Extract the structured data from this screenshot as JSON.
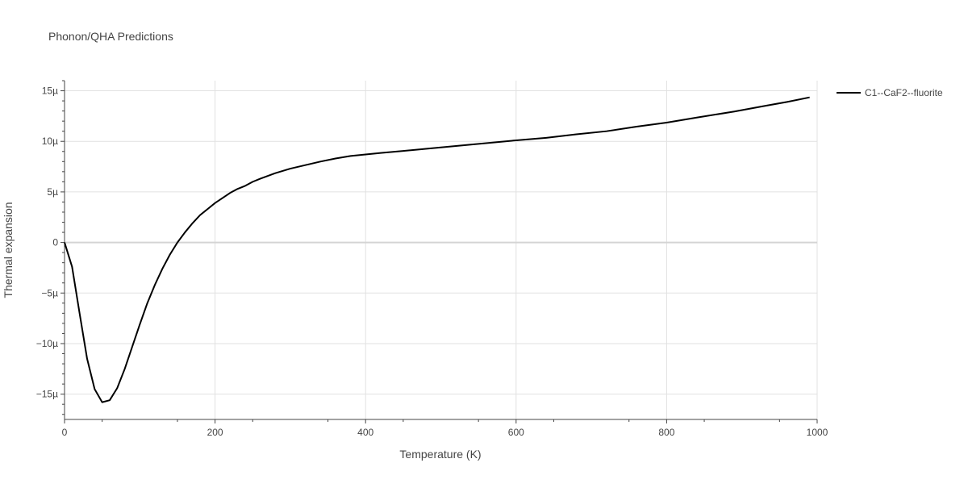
{
  "chart_data": {
    "type": "line",
    "title": "Phonon/QHA Predictions",
    "xlabel": "Temperature (K)",
    "ylabel": "Thermal expansion",
    "xlim": [
      0,
      1000
    ],
    "ylim": [
      -1.75e-05,
      1.6e-05
    ],
    "x_ticks": [
      {
        "value": 0,
        "label": "0"
      },
      {
        "value": 200,
        "label": "200"
      },
      {
        "value": 400,
        "label": "400"
      },
      {
        "value": 600,
        "label": "600"
      },
      {
        "value": 800,
        "label": "800"
      },
      {
        "value": 1000,
        "label": "1000"
      }
    ],
    "y_ticks": [
      {
        "value": -1.5e-05,
        "label": "−15µ"
      },
      {
        "value": -1e-05,
        "label": "−10µ"
      },
      {
        "value": -5e-06,
        "label": "−5µ"
      },
      {
        "value": 0,
        "label": "0"
      },
      {
        "value": 5e-06,
        "label": "5µ"
      },
      {
        "value": 1e-05,
        "label": "10µ"
      },
      {
        "value": 1.5e-05,
        "label": "15µ"
      }
    ],
    "grid": true,
    "legend_position": "top-right",
    "series": [
      {
        "name": "C1--CaF2--fluorite",
        "color": "#000000",
        "x": [
          0,
          10,
          20,
          30,
          40,
          50,
          60,
          70,
          80,
          90,
          100,
          110,
          120,
          130,
          140,
          150,
          160,
          170,
          180,
          190,
          200,
          210,
          220,
          230,
          240,
          250,
          260,
          280,
          300,
          320,
          340,
          360,
          380,
          400,
          420,
          450,
          500,
          550,
          600,
          640,
          680,
          720,
          760,
          800,
          840,
          890,
          930,
          960,
          990
        ],
        "y": [
          0,
          -2.4e-06,
          -7e-06,
          -1.15e-05,
          -1.45e-05,
          -1.58e-05,
          -1.56e-05,
          -1.44e-05,
          -1.25e-05,
          -1.03e-05,
          -8.1e-06,
          -6e-06,
          -4.2e-06,
          -2.6e-06,
          -1.2e-06,
          0.0,
          1e-06,
          1.9e-06,
          2.7e-06,
          3.3e-06,
          3.9e-06,
          4.4e-06,
          4.9e-06,
          5.3e-06,
          5.6e-06,
          6e-06,
          6.3e-06,
          6.85e-06,
          7.3e-06,
          7.65e-06,
          8e-06,
          8.3e-06,
          8.55e-06,
          8.7e-06,
          8.85e-06,
          9.05e-06,
          9.4e-06,
          9.75e-06,
          1.01e-05,
          1.035e-05,
          1.07e-05,
          1.1e-05,
          1.145e-05,
          1.185e-05,
          1.235e-05,
          1.295e-05,
          1.35e-05,
          1.39e-05,
          1.435e-05
        ]
      }
    ]
  }
}
